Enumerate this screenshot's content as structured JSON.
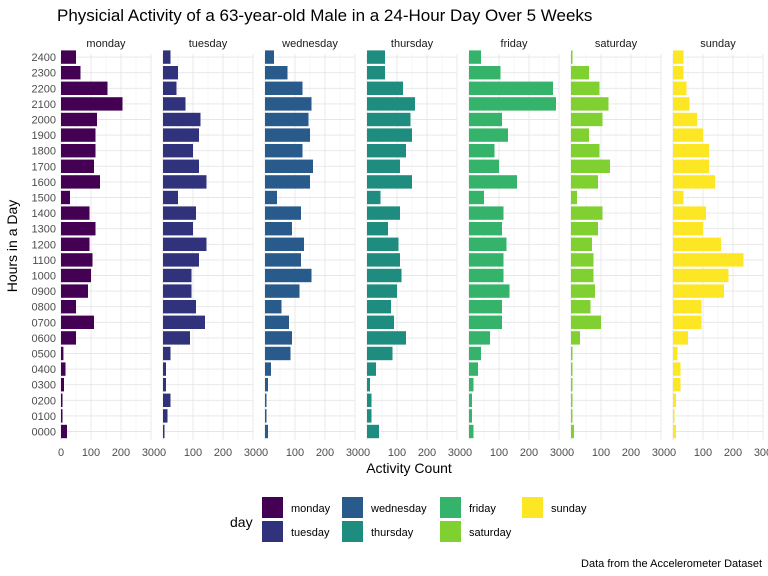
{
  "chart_data": {
    "type": "bar",
    "orientation": "horizontal",
    "facets": true,
    "title": "Physicial Activity of a 63-year-old Male in a 24-Hour Day Over 5 Weeks",
    "xlabel": "Activity Count",
    "ylabel": "Hours in a Day",
    "caption": "Data from the Accelerometer Dataset",
    "legend_title": "day",
    "legend_position": "bottom",
    "grid": true,
    "xlim": [
      0,
      300
    ],
    "x_ticks": [
      0,
      100,
      200,
      300
    ],
    "categories": [
      "0000",
      "0100",
      "0200",
      "0300",
      "0400",
      "0500",
      "0600",
      "0700",
      "0800",
      "0900",
      "1000",
      "1100",
      "1200",
      "1300",
      "1400",
      "1500",
      "1600",
      "1700",
      "1800",
      "1900",
      "2000",
      "2100",
      "2200",
      "2300",
      "2400"
    ],
    "series": [
      {
        "name": "monday",
        "color": "#440154",
        "values": [
          20,
          5,
          5,
          10,
          15,
          8,
          50,
          110,
          50,
          90,
          100,
          105,
          95,
          115,
          95,
          30,
          130,
          110,
          115,
          115,
          120,
          205,
          155,
          65,
          50
        ]
      },
      {
        "name": "tuesday",
        "color": "#30337b",
        "values": [
          5,
          15,
          25,
          10,
          10,
          25,
          90,
          140,
          110,
          95,
          95,
          120,
          145,
          100,
          110,
          50,
          145,
          120,
          100,
          120,
          125,
          75,
          45,
          50,
          25
        ]
      },
      {
        "name": "wednesday",
        "color": "#285a8c",
        "values": [
          10,
          5,
          5,
          10,
          20,
          85,
          90,
          80,
          55,
          115,
          155,
          120,
          130,
          90,
          120,
          40,
          150,
          160,
          125,
          150,
          145,
          155,
          125,
          75,
          30
        ]
      },
      {
        "name": "thursday",
        "color": "#1e8c7f",
        "values": [
          40,
          15,
          15,
          10,
          30,
          85,
          130,
          90,
          80,
          100,
          115,
          110,
          105,
          70,
          110,
          45,
          150,
          110,
          130,
          150,
          145,
          160,
          120,
          60,
          60
        ]
      },
      {
        "name": "friday",
        "color": "#35b36b",
        "values": [
          15,
          10,
          10,
          15,
          30,
          40,
          70,
          110,
          110,
          135,
          115,
          115,
          125,
          110,
          115,
          50,
          160,
          100,
          85,
          130,
          110,
          290,
          280,
          105,
          40
        ]
      },
      {
        "name": "saturday",
        "color": "#81d032",
        "values": [
          10,
          5,
          5,
          5,
          5,
          5,
          30,
          100,
          65,
          80,
          75,
          75,
          70,
          90,
          105,
          20,
          90,
          130,
          95,
          60,
          105,
          125,
          95,
          60,
          5
        ]
      },
      {
        "name": "sunday",
        "color": "#fde725",
        "values": [
          10,
          5,
          10,
          25,
          25,
          15,
          50,
          95,
          95,
          170,
          185,
          235,
          160,
          100,
          110,
          35,
          140,
          120,
          120,
          100,
          80,
          55,
          45,
          35,
          35
        ]
      }
    ]
  }
}
